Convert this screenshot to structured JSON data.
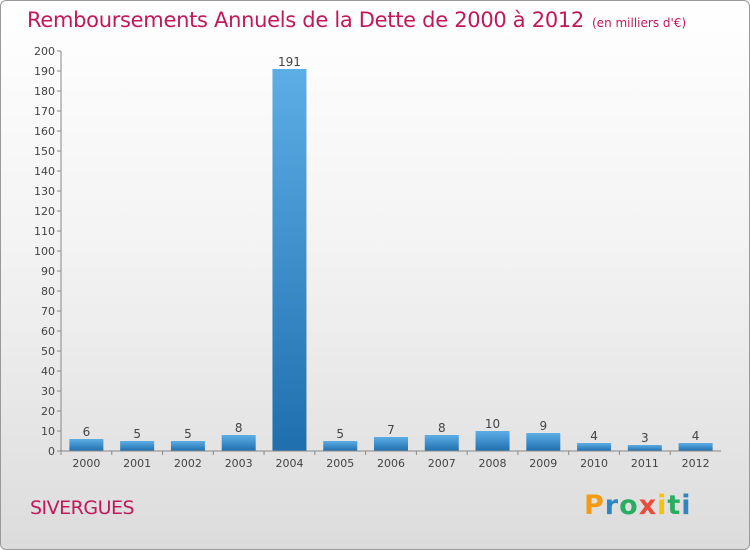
{
  "header": {
    "title": "Remboursements Annuels de la Dette de 2000 à 2012",
    "unit": "(en milliers d'€)"
  },
  "commune": "SIVERGUES",
  "logo": {
    "text": "Proxiti",
    "letters": [
      "P",
      "r",
      "o",
      "x",
      "i",
      "t",
      "i"
    ],
    "colors": [
      "#f39c12",
      "#2e86c1",
      "#27ae60",
      "#e74c3c",
      "#f1c40f",
      "#27ae60",
      "#2e86c1"
    ]
  },
  "colors": {
    "title": "#c2185b",
    "bar_top": "#5daee6",
    "bar_bottom": "#1f6fae"
  },
  "chart_data": {
    "type": "bar",
    "title": "Remboursements Annuels de la Dette de 2000 à 2012",
    "ylabel": "en milliers d'€",
    "xlabel": "",
    "categories": [
      "2000",
      "2001",
      "2002",
      "2003",
      "2004",
      "2005",
      "2006",
      "2007",
      "2008",
      "2009",
      "2010",
      "2011",
      "2012"
    ],
    "values": [
      6,
      5,
      5,
      8,
      191,
      5,
      7,
      8,
      10,
      9,
      4,
      3,
      4
    ],
    "ylim": [
      0,
      200
    ],
    "yticks": [
      0,
      10,
      20,
      30,
      40,
      50,
      60,
      70,
      80,
      90,
      100,
      110,
      120,
      130,
      140,
      150,
      160,
      170,
      180,
      190,
      200
    ],
    "grid": false
  }
}
